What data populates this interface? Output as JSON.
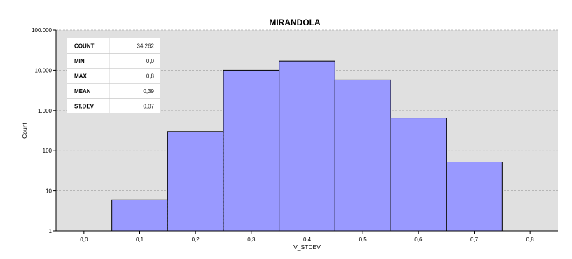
{
  "chart_data": {
    "type": "bar",
    "title": "MIRANDOLA",
    "xlabel": "V_STDEV",
    "ylabel": "Count",
    "y_scale": "log",
    "ylim": [
      1,
      100000
    ],
    "xlim": [
      -0.05,
      0.85
    ],
    "x_ticks": [
      0.0,
      0.1,
      0.2,
      0.3,
      0.4,
      0.5,
      0.6,
      0.7,
      0.8
    ],
    "x_tick_labels": [
      "0,0",
      "0,1",
      "0,2",
      "0,3",
      "0,4",
      "0,5",
      "0,6",
      "0,7",
      "0,8"
    ],
    "y_ticks": [
      1,
      10,
      100,
      1000,
      10000,
      100000
    ],
    "y_tick_labels": [
      "1",
      "10",
      "100",
      "1.000",
      "10.000",
      "100.000"
    ],
    "grid": true,
    "bar_color": "#9999ff",
    "plot_background": "#e0e0e0",
    "bins": [
      {
        "x_start": 0.05,
        "x_end": 0.15,
        "value": 6
      },
      {
        "x_start": 0.15,
        "x_end": 0.25,
        "value": 300
      },
      {
        "x_start": 0.25,
        "x_end": 0.35,
        "value": 10000
      },
      {
        "x_start": 0.35,
        "x_end": 0.45,
        "value": 17000
      },
      {
        "x_start": 0.45,
        "x_end": 0.55,
        "value": 5700
      },
      {
        "x_start": 0.55,
        "x_end": 0.65,
        "value": 650
      },
      {
        "x_start": 0.65,
        "x_end": 0.75,
        "value": 52
      }
    ],
    "stats": [
      {
        "label": "COUNT",
        "value": "34.262"
      },
      {
        "label": "MIN",
        "value": "0,0"
      },
      {
        "label": "MAX",
        "value": "0,8"
      },
      {
        "label": "MEAN",
        "value": "0,39"
      },
      {
        "label": "ST.DEV",
        "value": "0,07"
      }
    ]
  }
}
